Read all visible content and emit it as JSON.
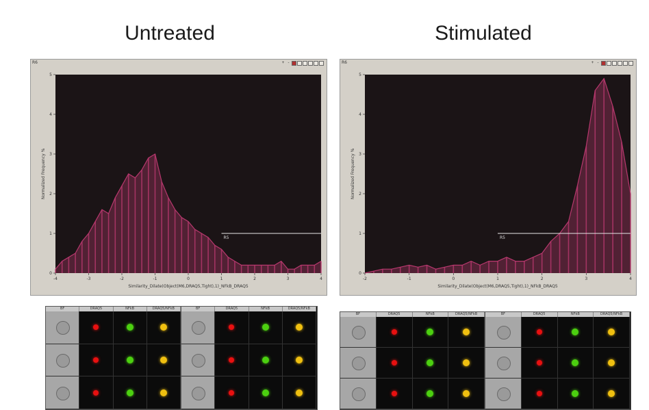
{
  "panels": {
    "left": {
      "title": "Untreated"
    },
    "right": {
      "title": "Stimulated"
    }
  },
  "window": {
    "tag": "R6"
  },
  "channel_headers": [
    "BF",
    "DRAQ5",
    "NFkB",
    "DRAQ5/NFkB"
  ],
  "colors": {
    "plot_bg": "#1b1416",
    "histogram": "#b8386e",
    "gate": "#e8e8e8",
    "draq5": "#e81010",
    "nfkb": "#4cd010",
    "merge": "#f0c010"
  },
  "chart_data": [
    {
      "type": "area",
      "title": "Untreated",
      "xlabel": "Similarity_Dilate(Object(M6,DRAQ5,Tight),1)_NFkB_DRAQ5",
      "ylabel": "Normalized Frequency %",
      "xlim": [
        -4,
        4
      ],
      "ylim": [
        0,
        5
      ],
      "x_ticks": [
        "-4",
        "-3",
        "-2",
        "-1",
        "0",
        "1",
        "2",
        "3",
        "4"
      ],
      "y_ticks": [
        "0",
        "1",
        "2",
        "3",
        "4",
        "5"
      ],
      "grid": false,
      "gate": {
        "label": "R5",
        "x_range": [
          1,
          4
        ],
        "y": 1.0
      },
      "x": [
        -4.0,
        -3.8,
        -3.6,
        -3.4,
        -3.2,
        -3.0,
        -2.8,
        -2.6,
        -2.4,
        -2.2,
        -2.0,
        -1.8,
        -1.6,
        -1.4,
        -1.2,
        -1.0,
        -0.8,
        -0.6,
        -0.4,
        -0.2,
        0.0,
        0.2,
        0.4,
        0.6,
        0.8,
        1.0,
        1.2,
        1.4,
        1.6,
        1.8,
        2.0,
        2.2,
        2.4,
        2.6,
        2.8,
        3.0,
        3.2,
        3.4,
        3.6,
        3.8,
        4.0
      ],
      "y": [
        0.1,
        0.3,
        0.4,
        0.5,
        0.8,
        1.0,
        1.3,
        1.6,
        1.5,
        1.9,
        2.2,
        2.5,
        2.4,
        2.6,
        2.9,
        3.0,
        2.3,
        1.9,
        1.6,
        1.4,
        1.3,
        1.1,
        1.0,
        0.9,
        0.7,
        0.6,
        0.4,
        0.3,
        0.2,
        0.2,
        0.2,
        0.2,
        0.2,
        0.2,
        0.3,
        0.1,
        0.1,
        0.2,
        0.2,
        0.2,
        0.3
      ]
    },
    {
      "type": "area",
      "title": "Stimulated",
      "xlabel": "Similarity_Dilate(Object(M6,DRAQ5,Tight),1)_NFkB_DRAQ5",
      "ylabel": "Normalized Frequency %",
      "xlim": [
        -2,
        4
      ],
      "ylim": [
        0,
        5
      ],
      "x_ticks": [
        "-2",
        "-1",
        "0",
        "1",
        "2",
        "3",
        "4"
      ],
      "y_ticks": [
        "0",
        "1",
        "2",
        "3",
        "4",
        "5"
      ],
      "grid": false,
      "gate": {
        "label": "R5",
        "x_range": [
          1,
          4
        ],
        "y": 1.0
      },
      "x": [
        -2.0,
        -1.8,
        -1.6,
        -1.4,
        -1.2,
        -1.0,
        -0.8,
        -0.6,
        -0.4,
        -0.2,
        0.0,
        0.2,
        0.4,
        0.6,
        0.8,
        1.0,
        1.2,
        1.4,
        1.6,
        1.8,
        2.0,
        2.2,
        2.4,
        2.6,
        2.8,
        3.0,
        3.2,
        3.4,
        3.6,
        3.8,
        4.0
      ],
      "y": [
        0.0,
        0.05,
        0.1,
        0.1,
        0.15,
        0.2,
        0.15,
        0.2,
        0.1,
        0.15,
        0.2,
        0.2,
        0.3,
        0.2,
        0.3,
        0.3,
        0.4,
        0.3,
        0.3,
        0.4,
        0.5,
        0.8,
        1.0,
        1.3,
        2.2,
        3.2,
        4.6,
        4.9,
        4.2,
        3.3,
        2.0
      ]
    }
  ],
  "cell_gallery": {
    "left": {
      "groups": [
        {
          "rows": [
            "merge",
            "merge",
            "merge"
          ]
        },
        {
          "rows": [
            "merge",
            "merge",
            "merge"
          ]
        }
      ]
    },
    "right": {
      "groups": [
        {
          "rows": [
            "merge",
            "merge",
            "merge"
          ]
        },
        {
          "rows": [
            "merge",
            "merge",
            "merge"
          ]
        }
      ]
    }
  }
}
